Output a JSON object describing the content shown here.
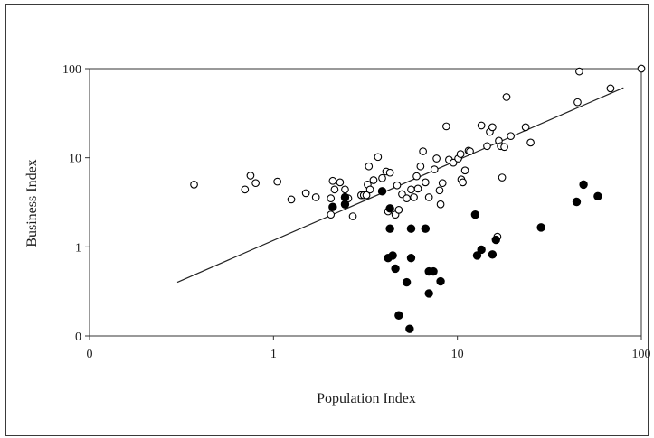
{
  "chart_data": {
    "type": "scatter",
    "title": "",
    "xlabel": "Population Index",
    "ylabel": "Business Index",
    "x_scale": "log",
    "y_scale": "log",
    "xlim": [
      0.1,
      100
    ],
    "ylim": [
      0.1,
      100
    ],
    "x_ticks": [
      {
        "value": 0.1,
        "label": "0"
      },
      {
        "value": 1,
        "label": "1"
      },
      {
        "value": 10,
        "label": "10"
      },
      {
        "value": 100,
        "label": "100"
      }
    ],
    "y_ticks": [
      {
        "value": 0.1,
        "label": "0"
      },
      {
        "value": 1,
        "label": "1"
      },
      {
        "value": 10,
        "label": "10"
      },
      {
        "value": 100,
        "label": "100"
      }
    ],
    "grid": false,
    "legend": "none",
    "trendline": {
      "x": [
        0.3,
        80
      ],
      "y": [
        0.4,
        61
      ]
    },
    "series": [
      {
        "marker": "open-circle",
        "color": "#000000",
        "points": [
          [
            0.37,
            5
          ],
          [
            0.7,
            4.4
          ],
          [
            0.75,
            6.3
          ],
          [
            0.8,
            5.2
          ],
          [
            1.05,
            5.4
          ],
          [
            1.25,
            3.4
          ],
          [
            1.5,
            4
          ],
          [
            1.7,
            3.6
          ],
          [
            2.1,
            5.5
          ],
          [
            2.05,
            3.5
          ],
          [
            2.05,
            2.3
          ],
          [
            2.15,
            4.4
          ],
          [
            2.3,
            5.3
          ],
          [
            2.45,
            4.4
          ],
          [
            2.55,
            3.5
          ],
          [
            2.7,
            2.2
          ],
          [
            3.0,
            3.8
          ],
          [
            3.1,
            3.8
          ],
          [
            3.2,
            3.8
          ],
          [
            3.25,
            5
          ],
          [
            3.3,
            8
          ],
          [
            3.35,
            4.4
          ],
          [
            3.5,
            5.6
          ],
          [
            3.7,
            10.2
          ],
          [
            3.9,
            5.9
          ],
          [
            4.1,
            7
          ],
          [
            4.2,
            2.5
          ],
          [
            4.3,
            6.8
          ],
          [
            4.6,
            2.3
          ],
          [
            4.8,
            2.6
          ],
          [
            4.7,
            4.9
          ],
          [
            5.0,
            3.9
          ],
          [
            5.3,
            3.5
          ],
          [
            5.6,
            4.4
          ],
          [
            5.8,
            3.6
          ],
          [
            6.0,
            6.2
          ],
          [
            6.1,
            4.5
          ],
          [
            6.3,
            8
          ],
          [
            6.5,
            11.8
          ],
          [
            6.7,
            5.3
          ],
          [
            7.0,
            3.6
          ],
          [
            7.5,
            7.4
          ],
          [
            7.7,
            9.8
          ],
          [
            8.0,
            4.3
          ],
          [
            8.1,
            3
          ],
          [
            8.3,
            5.2
          ],
          [
            8.7,
            22.5
          ],
          [
            9.0,
            9.5
          ],
          [
            9.5,
            8.8
          ],
          [
            10.1,
            9.8
          ],
          [
            10.4,
            11
          ],
          [
            10.5,
            5.7
          ],
          [
            10.7,
            5.3
          ],
          [
            11.0,
            7.2
          ],
          [
            11.5,
            12
          ],
          [
            11.7,
            11.8
          ],
          [
            13.5,
            23
          ],
          [
            14.5,
            13.5
          ],
          [
            15.0,
            19.5
          ],
          [
            15.5,
            22
          ],
          [
            16.5,
            1.3
          ],
          [
            16.8,
            15.5
          ],
          [
            17.2,
            13.5
          ],
          [
            17.5,
            6
          ],
          [
            18.0,
            13.2
          ],
          [
            18.5,
            48
          ],
          [
            19.5,
            17.5
          ],
          [
            23.5,
            22
          ],
          [
            25.0,
            14.8
          ],
          [
            45,
            42
          ],
          [
            46,
            93
          ],
          [
            68,
            60
          ],
          [
            100,
            100
          ]
        ]
      },
      {
        "marker": "filled-circle",
        "color": "#000000",
        "points": [
          [
            2.1,
            2.8
          ],
          [
            2.45,
            3
          ],
          [
            2.45,
            3.6
          ],
          [
            3.9,
            4.2
          ],
          [
            4.2,
            0.75
          ],
          [
            4.3,
            1.6
          ],
          [
            4.3,
            2.7
          ],
          [
            4.45,
            0.8
          ],
          [
            4.6,
            0.57
          ],
          [
            4.8,
            0.17
          ],
          [
            5.3,
            0.4
          ],
          [
            5.5,
            0.12
          ],
          [
            5.6,
            1.6
          ],
          [
            5.6,
            0.75
          ],
          [
            6.7,
            1.6
          ],
          [
            7.0,
            0.3
          ],
          [
            7.0,
            0.53
          ],
          [
            7.4,
            0.53
          ],
          [
            8.1,
            0.41
          ],
          [
            12.5,
            2.3
          ],
          [
            12.8,
            0.8
          ],
          [
            13.5,
            0.93
          ],
          [
            15.5,
            0.82
          ],
          [
            16.2,
            1.2
          ],
          [
            28.5,
            1.65
          ],
          [
            44.5,
            3.2
          ],
          [
            48.5,
            5
          ],
          [
            58,
            3.7
          ]
        ]
      }
    ]
  }
}
